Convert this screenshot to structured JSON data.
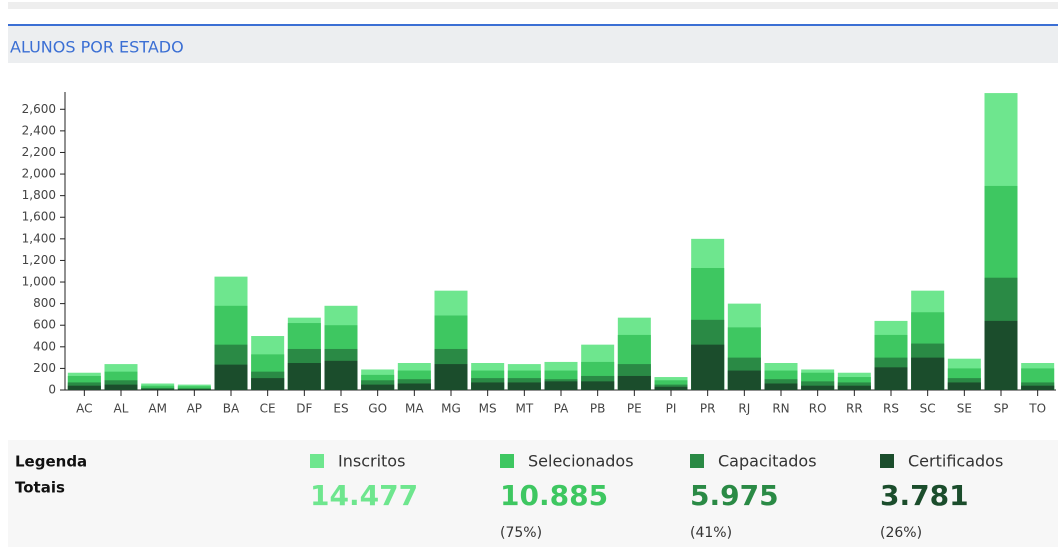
{
  "chart_data": {
    "type": "bar",
    "title": "ALUNOS POR ESTADO",
    "categories": [
      "AC",
      "AL",
      "AM",
      "AP",
      "BA",
      "CE",
      "DF",
      "ES",
      "GO",
      "MA",
      "MG",
      "MS",
      "MT",
      "PA",
      "PB",
      "PE",
      "PI",
      "PR",
      "RJ",
      "RN",
      "RO",
      "RR",
      "RS",
      "SC",
      "SE",
      "SP",
      "TO"
    ],
    "series": [
      {
        "name": "Inscritos",
        "color": "#6ee68e",
        "values": [
          160,
          240,
          60,
          50,
          1050,
          500,
          670,
          780,
          190,
          250,
          920,
          250,
          240,
          260,
          420,
          670,
          120,
          1400,
          800,
          250,
          190,
          160,
          640,
          920,
          290,
          2750,
          250
        ]
      },
      {
        "name": "Selecionados",
        "color": "#3ec761",
        "values": [
          130,
          170,
          40,
          35,
          780,
          330,
          620,
          600,
          140,
          180,
          690,
          180,
          180,
          180,
          260,
          510,
          90,
          1130,
          580,
          180,
          160,
          120,
          510,
          720,
          200,
          1890,
          200
        ]
      },
      {
        "name": "Capacitados",
        "color": "#2a8a45",
        "values": [
          70,
          90,
          20,
          15,
          420,
          170,
          380,
          380,
          90,
          100,
          380,
          110,
          110,
          100,
          130,
          240,
          50,
          650,
          300,
          100,
          80,
          70,
          300,
          430,
          110,
          1040,
          70
        ]
      },
      {
        "name": "Certificados",
        "color": "#1b4d2c",
        "values": [
          40,
          50,
          10,
          10,
          235,
          110,
          250,
          270,
          50,
          60,
          240,
          70,
          70,
          80,
          80,
          130,
          30,
          420,
          180,
          60,
          40,
          40,
          210,
          300,
          70,
          640,
          40
        ]
      }
    ],
    "ylim": [
      0,
      2760
    ],
    "yticks": [
      0,
      200,
      400,
      600,
      800,
      {
        "value": 1000,
        "label": "1,000"
      },
      {
        "value": 1200,
        "label": "1,200"
      },
      {
        "value": 1400,
        "label": "1,400"
      },
      {
        "value": 1600,
        "label": "1,600"
      },
      {
        "value": 1800,
        "label": "1,800"
      },
      {
        "value": 2000,
        "label": "2,000"
      },
      {
        "value": 2200,
        "label": "2,200"
      },
      {
        "value": 2400,
        "label": "2,400"
      },
      {
        "value": 2600,
        "label": "2,600"
      }
    ],
    "grid": false,
    "summary": {
      "legend_label": "Legenda",
      "totals_label": "Totais",
      "totals": [
        "14.477",
        "10.885",
        "5.975",
        "3.781"
      ],
      "shares": [
        "(75%)",
        "(41%)",
        "(26%)"
      ]
    }
  }
}
